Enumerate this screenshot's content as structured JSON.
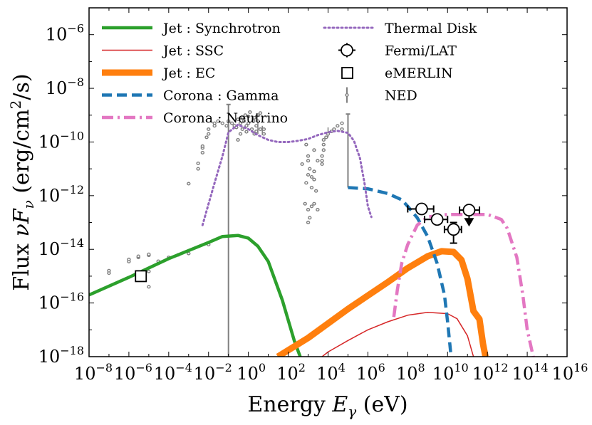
{
  "chart_data": {
    "type": "line",
    "xscale": "log",
    "yscale": "log",
    "xlim": [
      1e-08,
      1e+16
    ],
    "ylim": [
      1e-18,
      1e-05
    ],
    "xlabel": {
      "main": "Energy ",
      "var": "E",
      "sub": "γ",
      "unit": " (eV)"
    },
    "ylabel": {
      "main": "Flux ",
      "var": "νF",
      "sub": "ν",
      "unit_pre": " (erg/cm",
      "unit_sup": "2",
      "unit_post": "/s)"
    },
    "x_ticks_exp": [
      -8,
      -6,
      -4,
      -2,
      0,
      2,
      4,
      6,
      8,
      10,
      12,
      14,
      16
    ],
    "y_ticks_exp": [
      -18,
      -16,
      -14,
      -12,
      -10,
      -8,
      -6
    ],
    "legend_columns": [
      [
        "Jet : Synchrotron",
        "Jet : SSC",
        "Jet : EC",
        "Corona : Gamma",
        "Corona : Neutrino"
      ],
      [
        "Thermal Disk",
        "Fermi/LAT",
        "eMERLIN",
        "NED"
      ]
    ],
    "series": [
      {
        "name": "Jet : Synchrotron",
        "color": "#2ca02c",
        "style": "solid",
        "width": 4.5,
        "x": [
          1e-08,
          1e-06,
          0.0001,
          0.01,
          0.05,
          0.3,
          1,
          3,
          10,
          50,
          200,
          400
        ],
        "y": [
          2e-16,
          9e-16,
          4.5e-15,
          1.8e-14,
          3e-14,
          3.3e-14,
          2.6e-14,
          1.3e-14,
          3.5e-15,
          1.3e-16,
          4e-18,
          1e-18
        ]
      },
      {
        "name": "Jet : SSC",
        "color": "#d62728",
        "style": "solid",
        "width": 1.5,
        "x": [
          5000.0,
          10000.0,
          100000.0,
          1000000.0,
          10000000.0,
          100000000.0,
          1000000000.0,
          10000000000.0,
          30000000000.0,
          100000000000.0,
          200000000000.0
        ],
        "y": [
          1e-18,
          1.5e-18,
          4e-18,
          1e-17,
          2e-17,
          3.5e-17,
          4.5e-17,
          4e-17,
          2.6e-17,
          6e-18,
          1e-18
        ]
      },
      {
        "name": "Jet : EC",
        "color": "#ff7f0e",
        "style": "solid",
        "width": 9,
        "x": [
          30,
          1000.0,
          100000.0,
          10000000.0,
          100000000.0,
          1000000000.0,
          5000000000.0,
          20000000000.0,
          50000000000.0,
          100000000000.0,
          200000000000.0,
          400000000000.0,
          600000000000.0,
          800000000000.0
        ],
        "y": [
          1e-18,
          5e-18,
          6e-17,
          6e-16,
          2e-15,
          5.5e-15,
          8.5e-15,
          8e-15,
          4e-15,
          8e-16,
          5e-17,
          2.5e-17,
          3e-18,
          1e-18
        ]
      },
      {
        "name": "Corona : Gamma",
        "color": "#1f77b4",
        "style": "dash",
        "width": 4.5,
        "x": [
          100000.0,
          1000000.0,
          10000000.0,
          50000000.0,
          100000000.0,
          300000000.0,
          1000000000.0,
          3000000000.0,
          7000000000.0,
          10000000000.0,
          13000000000.0,
          15000000000.0
        ],
        "y": [
          2e-12,
          1.8e-12,
          1.2e-12,
          7e-13,
          4e-13,
          1.5e-13,
          3e-14,
          3e-15,
          2e-16,
          2e-17,
          3e-18,
          1e-18
        ]
      },
      {
        "name": "Corona : Neutrino",
        "color": "#e377c2",
        "style": "dashdot",
        "width": 4.5,
        "x": [
          20000000.0,
          30000000.0,
          50000000.0,
          100000000.0,
          300000000.0,
          1000000000.0,
          10000000000.0,
          100000000000.0,
          1000000000000.0,
          5000000000000.0,
          10000000000000.0,
          30000000000000.0,
          60000000000000.0,
          100000000000000.0,
          200000000000000.0
        ],
        "y": [
          3e-17,
          3e-16,
          3e-15,
          1.5e-14,
          8e-14,
          1.6e-13,
          2e-13,
          2e-13,
          2e-13,
          1.3e-13,
          6e-14,
          5e-15,
          2e-16,
          1e-17,
          1e-18
        ]
      },
      {
        "name": "Thermal Disk",
        "color": "#9467bd",
        "style": "dot",
        "width": 3,
        "x": [
          0.005,
          0.01,
          0.02,
          0.05,
          0.1,
          0.3,
          1,
          3,
          10,
          30,
          100,
          300,
          1000.0,
          3000.0,
          10000.0,
          30000.0,
          100000.0,
          200000.0,
          400000.0,
          700000.0,
          1000000.0,
          1500000.0
        ],
        "y": [
          8e-14,
          5e-13,
          3e-12,
          3e-11,
          2.3e-10,
          4.4e-10,
          3e-10,
          1.8e-10,
          1.2e-10,
          1e-10,
          1e-10,
          1.1e-10,
          1.3e-10,
          1.8e-10,
          2.3e-10,
          2.6e-10,
          2.2e-10,
          1.1e-10,
          2.5e-11,
          2.5e-12,
          4e-13,
          1.6e-13
        ]
      }
    ],
    "fermi_lat": [
      {
        "x": 500000000.0,
        "y": 3.2e-13,
        "xerr": [
          100000000.0,
          2000000000.0
        ]
      },
      {
        "x": 3000000000.0,
        "y": 1.3e-13,
        "xerr": [
          700000000.0,
          10000000000.0
        ]
      },
      {
        "x": 20000000000.0,
        "y": 5.5e-14,
        "xerr": [
          7000000000.0,
          50000000000.0
        ],
        "yerr": [
          1.7e-14,
          1e-13
        ]
      },
      {
        "x": 120000000000.0,
        "y": 2.9e-13,
        "xerr": [
          40000000000.0,
          400000000000.0
        ]
      }
    ],
    "fermi_upper_limit": {
      "x": 120000000000.0,
      "y": 9e-14
    },
    "emerlin": [
      {
        "x": 4e-06,
        "y": 1e-15
      }
    ],
    "ned_vertical_lines": [
      {
        "x": 0.1,
        "ylo": 1e-18,
        "yhi": 2.5e-09
      },
      {
        "x": 100000.0,
        "ylo": 2e-12,
        "yhi": 1.1e-09
      }
    ],
    "ned_errbars": [
      {
        "x": 3,
        "ylo": 2e-10,
        "yhi": 6e-10
      },
      {
        "x": 5,
        "ylo": 1.8e-10,
        "yhi": 4e-10
      },
      {
        "x": 10000.0,
        "ylo": 1.5e-10,
        "yhi": 3.5e-10
      }
    ],
    "ned_points": [
      [
        1e-07,
        1.3e-15
      ],
      [
        1e-07,
        1.6e-15
      ],
      [
        1e-06,
        3.5e-15
      ],
      [
        1e-06,
        4.2e-15
      ],
      [
        3e-06,
        5e-15
      ],
      [
        3e-06,
        5.5e-15
      ],
      [
        1e-05,
        6e-15
      ],
      [
        1e-05,
        6.5e-15
      ],
      [
        0.0001,
        5e-15
      ],
      [
        0.0003,
        6.2e-15
      ],
      [
        0.001,
        7e-15
      ],
      [
        0.01,
        1.5e-14
      ],
      [
        3e-05,
        3.6e-15
      ],
      [
        1e-05,
        4e-16
      ],
      [
        1e-05,
        1.5e-15
      ],
      [
        0.001,
        2.8e-12
      ],
      [
        0.003,
        1e-11
      ],
      [
        0.003,
        1.6e-11
      ],
      [
        0.005,
        4e-11
      ],
      [
        0.005,
        6e-11
      ],
      [
        0.005,
        7e-11
      ],
      [
        0.008,
        1.5e-10
      ],
      [
        0.01,
        2e-10
      ],
      [
        0.01,
        3e-10
      ],
      [
        0.02,
        4e-10
      ],
      [
        0.02,
        5e-10
      ],
      [
        0.03,
        6e-10
      ],
      [
        0.05,
        5e-10
      ],
      [
        0.08,
        4e-10
      ],
      [
        0.1,
        6e-10
      ],
      [
        0.15,
        5e-10
      ],
      [
        0.2,
        4e-10
      ],
      [
        0.25,
        3.5e-10
      ],
      [
        0.3,
        7e-10
      ],
      [
        0.4,
        5e-10
      ],
      [
        0.5,
        3e-10
      ],
      [
        0.6,
        6e-10
      ],
      [
        0.8,
        4e-10
      ],
      [
        1,
        5e-10
      ],
      [
        1,
        9e-10
      ],
      [
        1.5,
        3e-10
      ],
      [
        2,
        8e-10
      ],
      [
        2.5,
        4e-10
      ],
      [
        3,
        1e-09
      ],
      [
        3,
        6e-10
      ],
      [
        4,
        3e-10
      ],
      [
        4,
        1.2e-09
      ],
      [
        0.7,
        1e-09
      ],
      [
        0.5,
        8e-10
      ],
      [
        1.2,
        1.3e-09
      ],
      [
        2,
        2e-10
      ],
      [
        2.5,
        2.5e-10
      ],
      [
        6,
        3e-10
      ],
      [
        6,
        2e-10
      ],
      [
        0.4,
        2e-10
      ],
      [
        0.8,
        2.4e-10
      ],
      [
        1.8,
        6e-10
      ],
      [
        0.3,
        1.2e-10
      ],
      [
        500,
        1.5e-11
      ],
      [
        1000.0,
        2e-11
      ],
      [
        1000.0,
        3e-11
      ],
      [
        1500.0,
        5e-12
      ],
      [
        1500.0,
        2e-12
      ],
      [
        2000.0,
        4e-12
      ],
      [
        2000.0,
        8e-12
      ],
      [
        800,
        3e-12
      ],
      [
        1000.0,
        6e-12
      ],
      [
        1200.0,
        1e-11
      ],
      [
        2500.0,
        1.5e-12
      ],
      [
        1500.0,
        4e-13
      ],
      [
        1000.0,
        3e-13
      ],
      [
        1200.0,
        1.5e-13
      ],
      [
        2000.0,
        5e-13
      ],
      [
        3000.0,
        3e-13
      ],
      [
        1000.0,
        1e-13
      ],
      [
        700,
        5e-13
      ],
      [
        2000.0,
        5e-11
      ],
      [
        3000.0,
        2e-11
      ],
      [
        800,
        8e-11
      ],
      [
        5000.0,
        1.5e-11
      ],
      [
        5000.0,
        2e-11
      ],
      [
        5000.0,
        3e-11
      ],
      [
        6000.0,
        5e-11
      ],
      [
        6000.0,
        8e-11
      ],
      [
        6000.0,
        1.2e-10
      ],
      [
        8000.0,
        1.5e-10
      ],
      [
        10000.0,
        2e-10
      ],
      [
        15000.0,
        2.5e-10
      ],
      [
        20000.0,
        3e-10
      ],
      [
        30000.0,
        4e-10
      ],
      [
        50000.0,
        3e-10
      ],
      [
        50000.0,
        5e-10
      ]
    ]
  }
}
